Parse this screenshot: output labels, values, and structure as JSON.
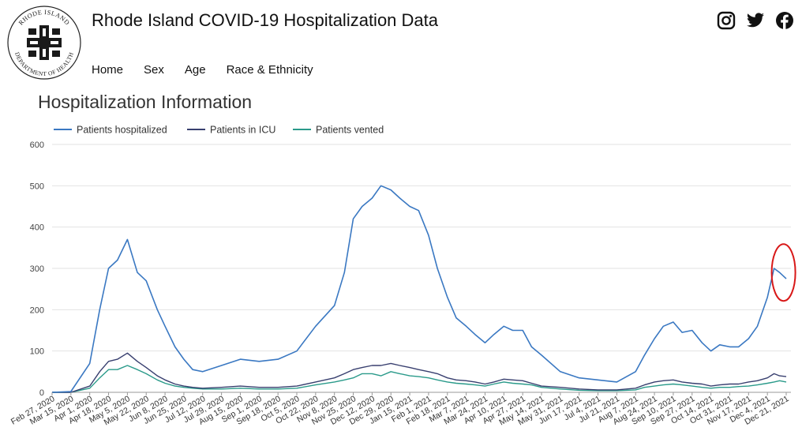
{
  "header": {
    "logo_text": "RHODE ISLAND DEPARTMENT OF HEALTH",
    "title": "Rhode Island COVID-19 Hospitalization Data",
    "social_icons": [
      "instagram-icon",
      "twitter-icon",
      "facebook-icon"
    ]
  },
  "nav": {
    "items": [
      "Home",
      "Sex",
      "Age",
      "Race & Ethnicity"
    ]
  },
  "colors": {
    "hospitalized": "#3a78c2",
    "icu": "#383f6f",
    "vented": "#2a9a8a",
    "annotation": "#d81818"
  },
  "chart_data": {
    "type": "line",
    "title": "Hospitalization Information",
    "xlabel": "",
    "ylabel": "",
    "ylim": [
      0,
      600
    ],
    "yticks": [
      0,
      100,
      200,
      300,
      400,
      500,
      600
    ],
    "grid": true,
    "legend_position": "top-left",
    "x_tick_labels": [
      "Feb 27, 2020",
      "Mar 15, 2020",
      "Apr 1, 2020",
      "Apr 18, 2020",
      "May 5, 2020",
      "May 22, 2020",
      "Jun 8, 2020",
      "Jun 25, 2020",
      "Jul 12, 2020",
      "Jul 29, 2020",
      "Aug 15, 2020",
      "Sep 1, 2020",
      "Sep 18, 2020",
      "Oct 5, 2020",
      "Oct 22, 2020",
      "Nov 8, 2020",
      "Nov 25, 2020",
      "Dec 12, 2020",
      "Dec 29, 2020",
      "Jan 15, 2021",
      "Feb 1, 2021",
      "Feb 18, 2021",
      "Mar 7, 2021",
      "Mar 24, 2021",
      "Apr 10, 2021",
      "Apr 27, 2021",
      "May 14, 2021",
      "May 31, 2021",
      "Jun 17, 2021",
      "Jul 4, 2021",
      "Jul 21, 2021",
      "Aug 7, 2021",
      "Aug 24, 2021",
      "Sep 10, 2021",
      "Sep 27, 2021",
      "Oct 14, 2021",
      "Oct 31, 2021",
      "Nov 17, 2021",
      "Dec 4, 2021",
      "Dec 21, 2021"
    ],
    "x": [
      "Feb 27, 2020",
      "Mar 15, 2020",
      "Apr 1, 2020",
      "Apr 10, 2020",
      "Apr 18, 2020",
      "Apr 26, 2020",
      "May 5, 2020",
      "May 14, 2020",
      "May 22, 2020",
      "Jun 1, 2020",
      "Jun 8, 2020",
      "Jun 17, 2020",
      "Jun 25, 2020",
      "Jul 3, 2020",
      "Jul 12, 2020",
      "Jul 29, 2020",
      "Aug 15, 2020",
      "Sep 1, 2020",
      "Sep 18, 2020",
      "Oct 5, 2020",
      "Oct 22, 2020",
      "Nov 8, 2020",
      "Nov 17, 2020",
      "Nov 25, 2020",
      "Dec 3, 2020",
      "Dec 12, 2020",
      "Dec 20, 2020",
      "Dec 29, 2020",
      "Jan 6, 2021",
      "Jan 15, 2021",
      "Jan 23, 2021",
      "Feb 1, 2021",
      "Feb 9, 2021",
      "Feb 18, 2021",
      "Feb 26, 2021",
      "Mar 7, 2021",
      "Mar 15, 2021",
      "Mar 24, 2021",
      "Apr 1, 2021",
      "Apr 10, 2021",
      "Apr 18, 2021",
      "Apr 27, 2021",
      "May 5, 2021",
      "May 14, 2021",
      "May 31, 2021",
      "Jun 17, 2021",
      "Jul 4, 2021",
      "Jul 21, 2021",
      "Aug 7, 2021",
      "Aug 15, 2021",
      "Aug 24, 2021",
      "Sep 1, 2021",
      "Sep 10, 2021",
      "Sep 18, 2021",
      "Sep 27, 2021",
      "Oct 6, 2021",
      "Oct 14, 2021",
      "Oct 22, 2021",
      "Oct 31, 2021",
      "Nov 8, 2021",
      "Nov 17, 2021",
      "Nov 25, 2021",
      "Dec 4, 2021",
      "Dec 10, 2021",
      "Dec 15, 2021",
      "Dec 21, 2021"
    ],
    "series": [
      {
        "name": "Patients hospitalized",
        "values": [
          0,
          2,
          70,
          200,
          300,
          320,
          370,
          290,
          270,
          200,
          160,
          110,
          80,
          55,
          50,
          65,
          80,
          75,
          80,
          100,
          160,
          210,
          290,
          420,
          450,
          470,
          500,
          490,
          470,
          450,
          440,
          380,
          300,
          230,
          180,
          160,
          140,
          120,
          140,
          160,
          150,
          150,
          110,
          90,
          50,
          35,
          30,
          25,
          50,
          90,
          130,
          160,
          170,
          145,
          150,
          120,
          100,
          115,
          110,
          110,
          130,
          160,
          230,
          300,
          290,
          275
        ]
      },
      {
        "name": "Patients in ICU",
        "values": [
          0,
          0,
          15,
          50,
          75,
          80,
          95,
          75,
          60,
          40,
          30,
          20,
          15,
          12,
          10,
          12,
          15,
          12,
          12,
          15,
          25,
          35,
          45,
          55,
          60,
          65,
          65,
          70,
          65,
          60,
          55,
          50,
          45,
          35,
          30,
          28,
          25,
          20,
          25,
          32,
          30,
          28,
          22,
          15,
          12,
          8,
          6,
          6,
          10,
          18,
          25,
          28,
          30,
          25,
          22,
          20,
          15,
          18,
          20,
          20,
          25,
          28,
          35,
          45,
          40,
          38
        ]
      },
      {
        "name": "Patients vented",
        "values": [
          0,
          0,
          10,
          35,
          55,
          55,
          65,
          55,
          45,
          30,
          22,
          15,
          12,
          10,
          8,
          8,
          10,
          8,
          8,
          10,
          18,
          25,
          30,
          35,
          45,
          45,
          40,
          50,
          45,
          40,
          38,
          35,
          30,
          25,
          22,
          20,
          18,
          15,
          20,
          25,
          22,
          20,
          18,
          12,
          8,
          5,
          4,
          4,
          6,
          12,
          15,
          18,
          20,
          18,
          15,
          12,
          10,
          12,
          12,
          14,
          15,
          18,
          22,
          25,
          28,
          25
        ]
      }
    ]
  }
}
